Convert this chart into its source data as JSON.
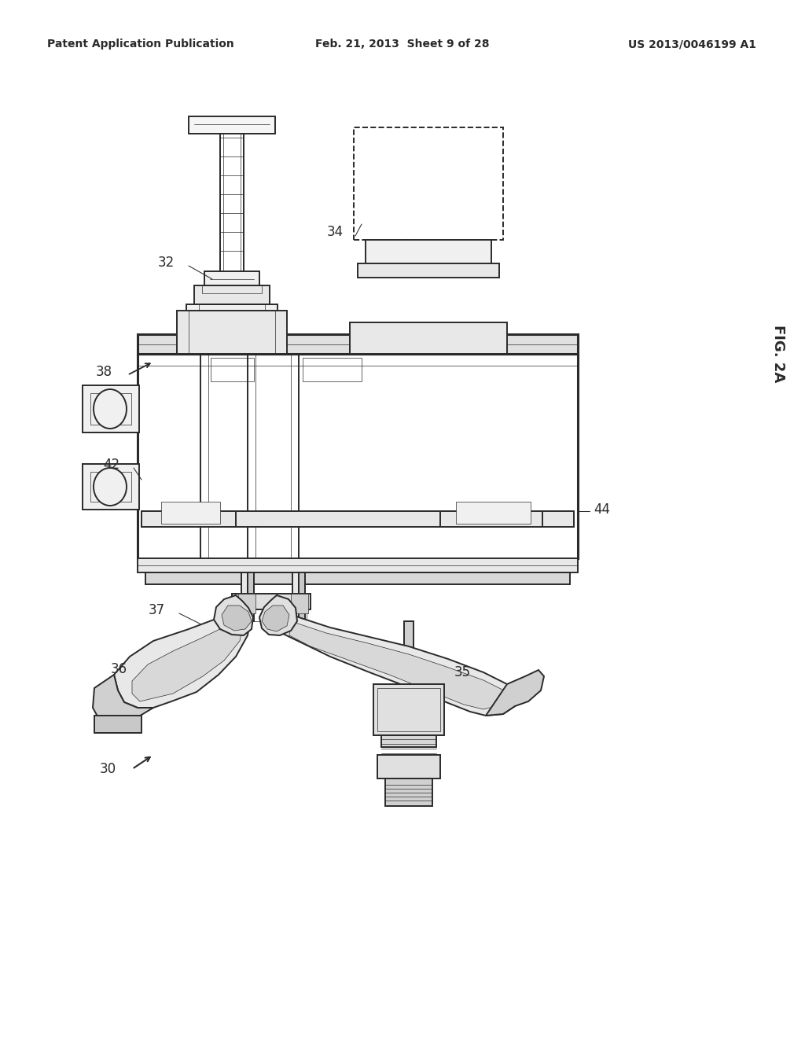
{
  "bg_color": "#ffffff",
  "header_left": "Patent Application Publication",
  "header_center": "Feb. 21, 2013  Sheet 9 of 28",
  "header_right": "US 2013/0046199 A1",
  "fig_label": "FIG. 2A",
  "line_color": "#2a2a2a",
  "lw_heavy": 2.2,
  "lw_med": 1.4,
  "lw_light": 0.8,
  "lw_thin": 0.5
}
